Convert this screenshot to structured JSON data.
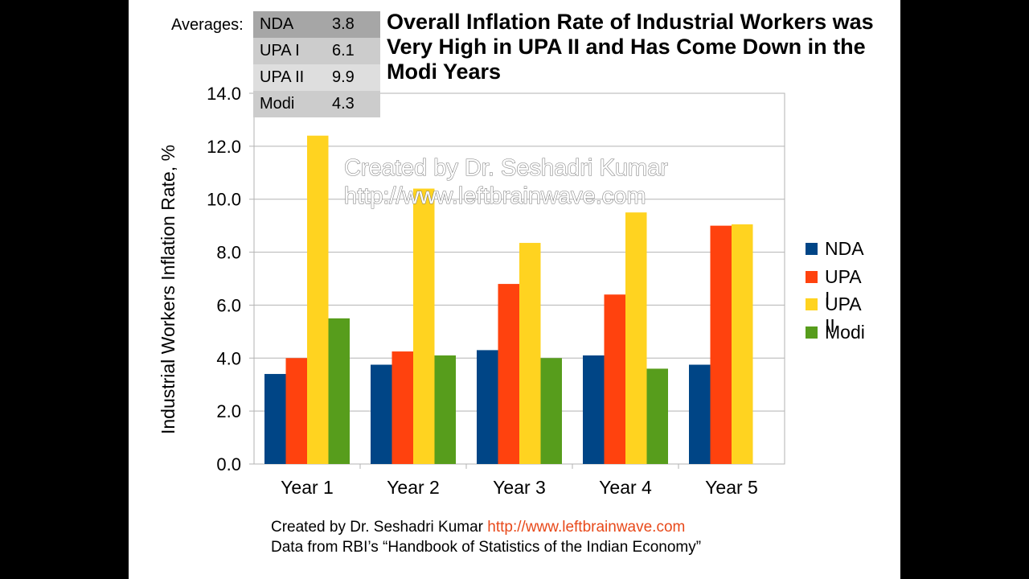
{
  "averages": {
    "label": "Averages:",
    "rows": [
      {
        "name": "NDA",
        "value": "3.8",
        "bg": "#a6a6a6"
      },
      {
        "name": "UPA I",
        "value": "6.1",
        "bg": "#cccccc"
      },
      {
        "name": "UPA II",
        "value": "9.9",
        "bg": "#dedede"
      },
      {
        "name": "Modi",
        "value": "4.3",
        "bg": "#cccccc"
      }
    ]
  },
  "watermark": {
    "line1": "Created by Dr. Seshadri Kumar",
    "line2": "http://www.leftbrainwave.com"
  },
  "footer": {
    "line1_text": "Created by Dr. Seshadri Kumar ",
    "line1_link": "http://www.leftbrainwave.com",
    "line2": "Data from RBI’s “Handbook of Statistics of the Indian Economy”"
  },
  "chart_data": {
    "type": "bar",
    "title": "Overall Inflation Rate of Industrial Workers was Very High in UPA II and Has Come Down in the Modi Years",
    "xlabel": "",
    "ylabel": "Industrial Workers Inflation Rate, %",
    "ylim": [
      0,
      14
    ],
    "yticks": [
      "0.0",
      "2.0",
      "4.0",
      "6.0",
      "8.0",
      "10.0",
      "12.0",
      "14.0"
    ],
    "grid": true,
    "legend_position": "right",
    "categories": [
      "Year 1",
      "Year 2",
      "Year 3",
      "Year 4",
      "Year 5"
    ],
    "series": [
      {
        "name": "NDA",
        "color": "#004586",
        "values": [
          3.4,
          3.75,
          4.3,
          4.1,
          3.75
        ]
      },
      {
        "name": "UPA I",
        "color": "#ff420e",
        "values": [
          4.0,
          4.25,
          6.8,
          6.4,
          9.0
        ]
      },
      {
        "name": "UPA II",
        "color": "#ffd320",
        "values": [
          12.4,
          10.4,
          8.35,
          9.5,
          9.05
        ]
      },
      {
        "name": "Modi",
        "color": "#579d1c",
        "values": [
          5.5,
          4.1,
          4.0,
          3.6,
          null
        ]
      }
    ]
  }
}
